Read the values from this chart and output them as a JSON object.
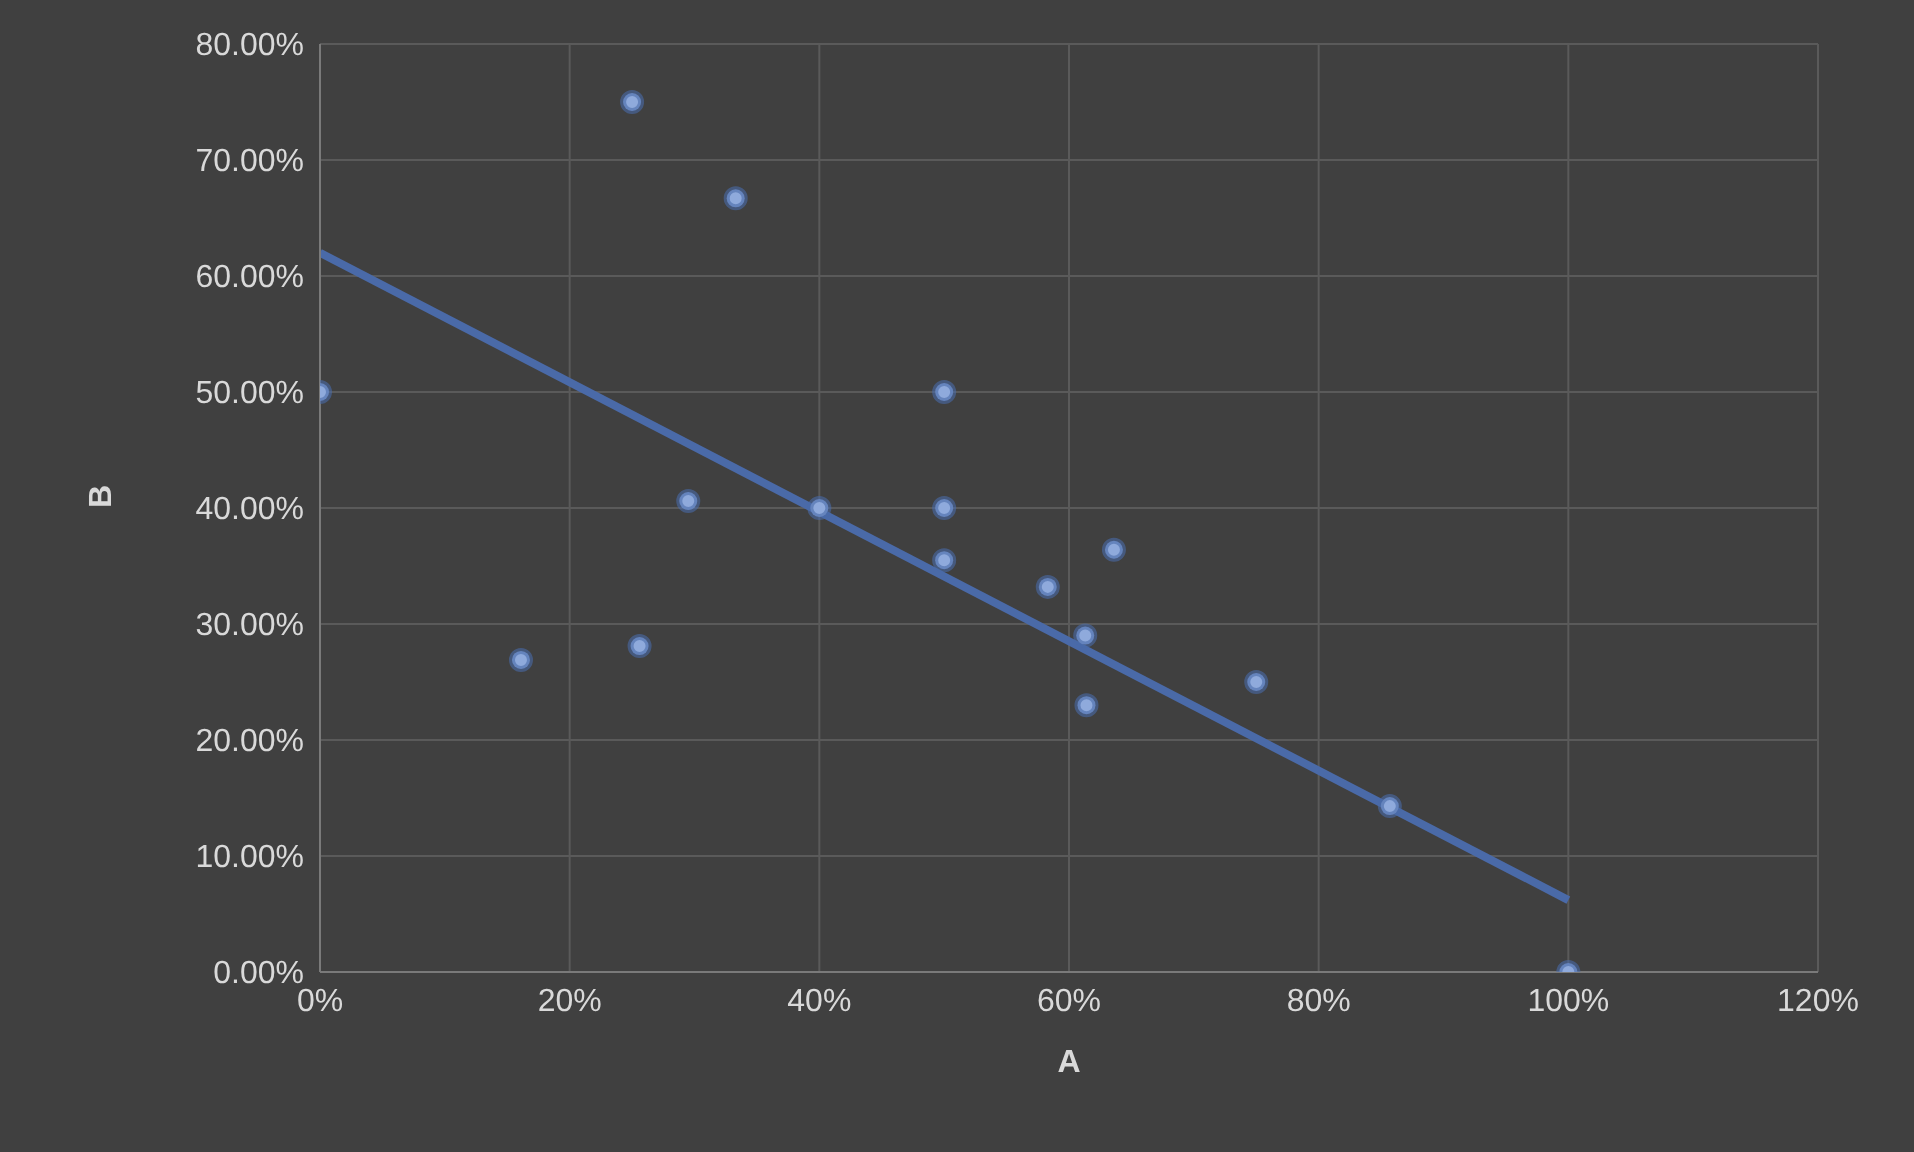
{
  "chart_data": {
    "type": "scatter",
    "xlabel": "A",
    "ylabel": "B",
    "xlim": [
      0,
      120
    ],
    "xticks": [
      {
        "value": 0,
        "label": "0%"
      },
      {
        "value": 20,
        "label": "20%"
      },
      {
        "value": 40,
        "label": "40%"
      },
      {
        "value": 60,
        "label": "60%"
      },
      {
        "value": 80,
        "label": "80%"
      },
      {
        "value": 100,
        "label": "100%"
      },
      {
        "value": 120,
        "label": "120%"
      }
    ],
    "ylim": [
      0,
      80
    ],
    "yticks": [
      {
        "value": 0,
        "label": "0.00%"
      },
      {
        "value": 10,
        "label": "10.00%"
      },
      {
        "value": 20,
        "label": "20.00%"
      },
      {
        "value": 30,
        "label": "30.00%"
      },
      {
        "value": 40,
        "label": "40.00%"
      },
      {
        "value": 50,
        "label": "50.00%"
      },
      {
        "value": 60,
        "label": "60.00%"
      },
      {
        "value": 70,
        "label": "70.00%"
      },
      {
        "value": 80,
        "label": "80.00%"
      }
    ],
    "grid": true,
    "series": [
      {
        "color": "#8faadc",
        "marker": "circle",
        "x": [
          0,
          25,
          33.3,
          16.1,
          25.6,
          29.5,
          40,
          50,
          50,
          50,
          58.3,
          61.3,
          61.4,
          63.6,
          75,
          85.7,
          100
        ],
        "values": [
          50,
          75,
          66.7,
          26.9,
          28.1,
          40.6,
          40,
          50,
          40,
          35.5,
          33.2,
          29,
          23,
          36.4,
          25,
          14.3,
          0
        ]
      },
      {
        "type": "line",
        "color": "#4a6aa8",
        "x": [
          0,
          100
        ],
        "values": [
          62,
          6.2
        ]
      }
    ]
  }
}
